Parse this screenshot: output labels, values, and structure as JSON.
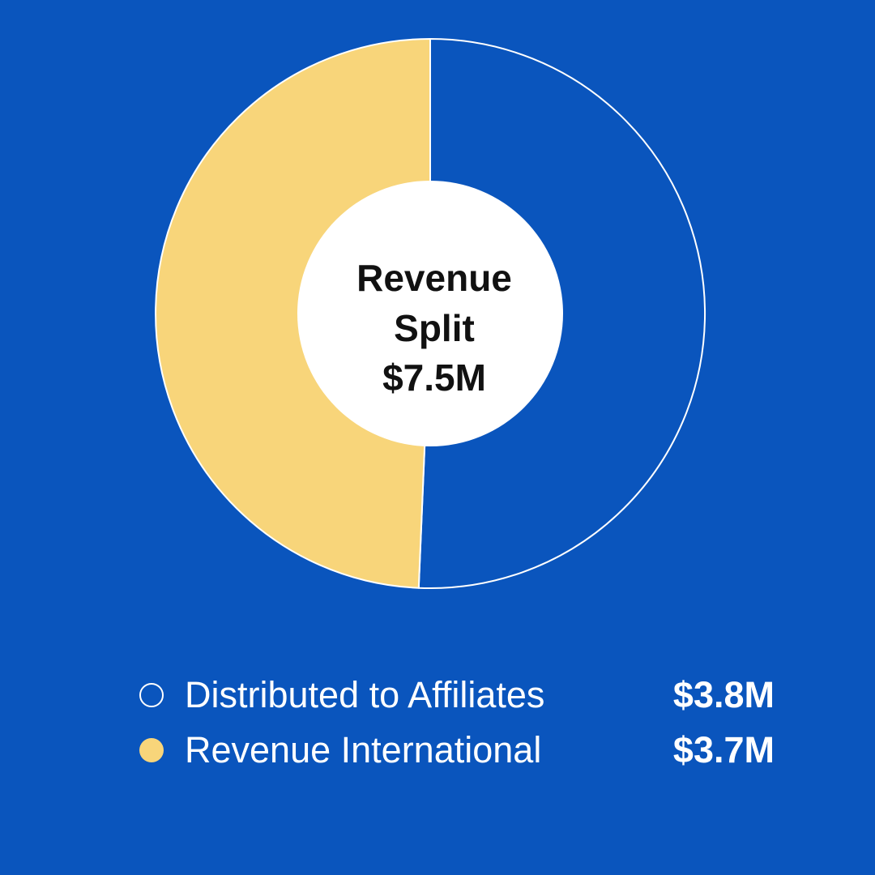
{
  "colors": {
    "background": "#0a55bd",
    "slice_affiliates": "#0a55bd",
    "slice_international": "#f8d57a",
    "center_circle": "#ffffff",
    "outline": "#ffffff"
  },
  "chart_data": {
    "type": "pie",
    "center_label": [
      "Revenue",
      "Split",
      "$7.5M"
    ],
    "categories": [
      "Distributed to Affiliates",
      "Revenue International"
    ],
    "values": [
      3.8,
      3.7
    ],
    "value_labels": [
      "$3.8M",
      "$3.7M"
    ],
    "total": 7.5,
    "hole": true,
    "legend_position": "bottom"
  },
  "legend": {
    "items": [
      {
        "label": "Distributed to Affiliates",
        "value": "$3.8M",
        "marker": "outline"
      },
      {
        "label": "Revenue International",
        "value": "$3.7M",
        "marker": "filled"
      }
    ]
  }
}
